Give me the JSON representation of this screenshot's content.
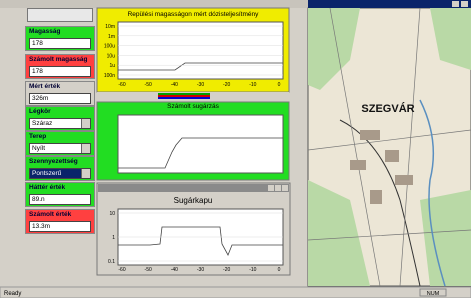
{
  "left_panel": {
    "fields": [
      {
        "label": "Magasság",
        "value": "178"
      },
      {
        "label": "Számolt magasság",
        "value": "178"
      },
      {
        "label": "Mért érték",
        "value": "326m"
      },
      {
        "label": "Légkör",
        "value": "Száraz"
      },
      {
        "label": "Terep",
        "value": "Nyílt"
      },
      {
        "label": "Szennyezettség",
        "value": "Pontszerű"
      },
      {
        "label": "Háttér érték",
        "value": "89.n"
      },
      {
        "label": "Számolt érték",
        "value": "13.3m"
      }
    ]
  },
  "charts": [
    {
      "title": "Repülési magasságon mért dózisteljesítmény",
      "yticks": [
        "10m",
        "1m",
        "100u",
        "10u",
        "1u",
        "100n"
      ],
      "xticks": [
        "-60",
        "-50",
        "-40",
        "-30",
        "-20",
        "-10",
        "0"
      ]
    },
    {
      "title": "Számolt sugárzás"
    },
    {
      "title": "Sugárkapu",
      "yticks": [
        "10",
        "1",
        "0.1"
      ],
      "xticks": [
        "-60",
        "-50",
        "-40",
        "-30",
        "-20",
        "-10",
        "0"
      ]
    }
  ],
  "map": {
    "label": "SZEGVÁR"
  },
  "status": {
    "left": "Ready",
    "right": "NUM"
  }
}
